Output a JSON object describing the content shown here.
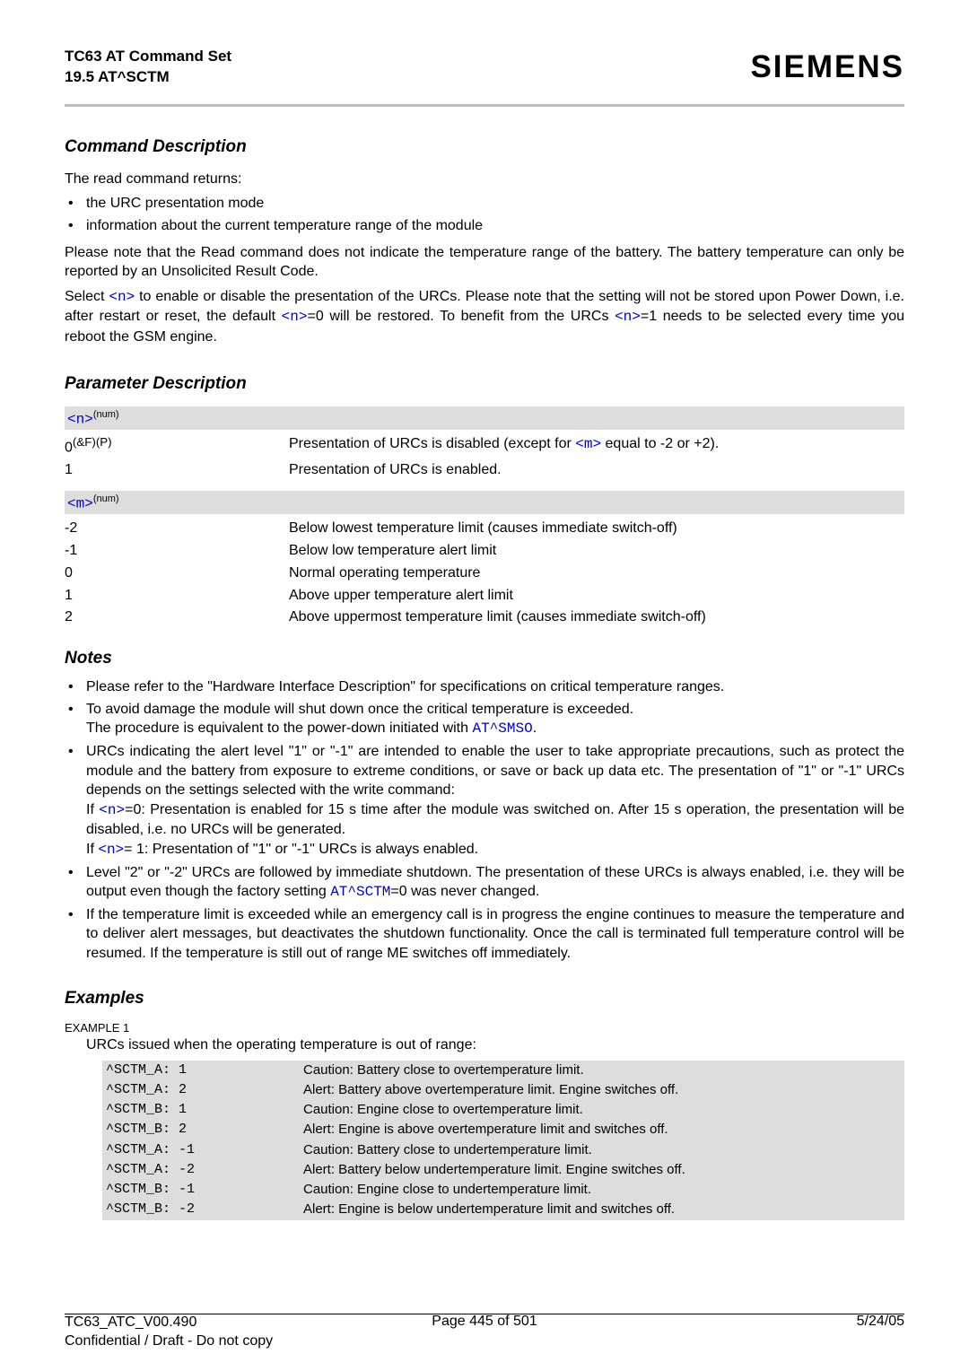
{
  "header": {
    "title_line1": "TC63 AT Command Set",
    "title_line2": "19.5 AT^SCTM",
    "brand": "SIEMENS"
  },
  "sections": {
    "cmd_desc_heading": "Command Description",
    "cmd_desc_intro": "The read command returns:",
    "cmd_bullets": [
      "the URC presentation mode",
      "information about the current temperature range of the module"
    ],
    "cmd_p1": "Please note that the Read command does not indicate the temperature range of the battery. The battery temperature can only be reported by an Unsolicited Result Code.",
    "cmd_p2_a": "Select ",
    "cmd_p2_b": " to enable or disable the presentation of the URCs. Please note that the setting will not be stored upon Power Down, i.e. after restart or reset, the default ",
    "cmd_p2_c": "=0 will be restored. To benefit from the URCs ",
    "cmd_p2_d": "=1 needs to be selected every time you reboot the GSM engine.",
    "n_ref": "<n>",
    "m_ref": "<m>",
    "param_heading": "Parameter Description",
    "n_tag": "<n>",
    "n_sup": "(num)",
    "n_rows": [
      {
        "k_html": "0<sup>(&amp;F)(P)</sup>",
        "v_a": "Presentation of URCs is disabled (except for ",
        "v_b": " equal to -2 or +2)."
      },
      {
        "k_html": "1",
        "v_a": "Presentation of URCs is enabled.",
        "v_b": ""
      }
    ],
    "m_tag": "<m>",
    "m_sup": "(num)",
    "m_rows": [
      {
        "k": "-2",
        "v": "Below lowest temperature limit (causes immediate switch-off)"
      },
      {
        "k": "-1",
        "v": "Below low temperature alert limit"
      },
      {
        "k": "0",
        "v": "Normal operating temperature"
      },
      {
        "k": "1",
        "v": "Above upper temperature alert limit"
      },
      {
        "k": "2",
        "v": "Above uppermost temperature limit (causes immediate switch-off)"
      }
    ],
    "notes_heading": "Notes",
    "notes": {
      "n1": "Please refer to the \"Hardware Interface Description\" for specifications on critical temperature ranges.",
      "n2a": "To avoid damage the module will shut down once the critical temperature is exceeded.",
      "n2b_a": "The procedure is equivalent to the power-down initiated with ",
      "n2b_code": "AT^SMSO",
      "n2b_b": ".",
      "n3_p1": "URCs indicating the alert level \"1\" or \"-1\" are intended to enable the user to take appropriate precautions, such as protect the module and the battery from exposure to extreme conditions, or save or back up data etc. The presentation of \"1\" or \"-1\" URCs depends on the settings selected with the write command:",
      "n3_p2_a": "If ",
      "n3_p2_b": "=0: Presentation is enabled for 15 s time after the module was switched on. After 15 s operation, the presentation will be disabled, i.e. no URCs will be generated.",
      "n3_p3_a": "If ",
      "n3_p3_b": "= 1: Presentation of \"1\" or \"-1\" URCs is always enabled.",
      "n4_a": "Level \"2\" or \"-2\" URCs are followed by immediate shutdown. The presentation of these URCs is always enabled, i.e. they will be output even though the factory setting ",
      "n4_code": "AT^SCTM",
      "n4_b": "=0 was never changed.",
      "n5": "If the temperature limit is exceeded while an emergency call is in progress the engine continues to measure the temperature and to deliver alert messages, but deactivates the shutdown functionality. Once the call is terminated full temperature control will be resumed. If the temperature is still out of range ME switches off immediately."
    },
    "examples_heading": "Examples",
    "example_label": "EXAMPLE 1",
    "example_sub": "URCs issued when the operating temperature is out of range:",
    "example_rows": [
      {
        "c": "^SCTM_A: 1",
        "d": "Caution: Battery close to overtemperature limit."
      },
      {
        "c": "^SCTM_A: 2",
        "d": "Alert: Battery above overtemperature limit. Engine switches off."
      },
      {
        "c": "^SCTM_B: 1",
        "d": "Caution: Engine close to overtemperature limit."
      },
      {
        "c": "^SCTM_B: 2",
        "d": "Alert: Engine is above overtemperature limit and switches off."
      },
      {
        "c": "^SCTM_A: -1",
        "d": "Caution: Battery close to undertemperature limit."
      },
      {
        "c": "^SCTM_A: -2",
        "d": "Alert: Battery below undertemperature limit. Engine switches off."
      },
      {
        "c": "^SCTM_B: -1",
        "d": "Caution: Engine close to undertemperature limit."
      },
      {
        "c": "^SCTM_B: -2",
        "d": "Alert: Engine is below undertemperature limit and switches off."
      }
    ]
  },
  "footer": {
    "left1": "TC63_ATC_V00.490",
    "left2": "Confidential / Draft - Do not copy",
    "center": "Page 445 of 501",
    "right": "5/24/05"
  }
}
